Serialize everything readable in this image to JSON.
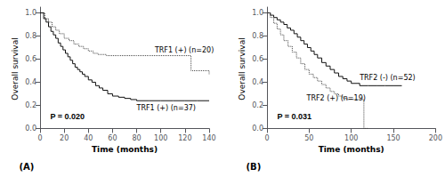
{
  "chart_data": [
    {
      "type": "step",
      "title": "(A)",
      "xlabel": "Time (months)",
      "ylabel": "Overall survival",
      "xlim": [
        0,
        140
      ],
      "ylim": [
        -0.02,
        1.05
      ],
      "xticks": [
        0,
        20,
        40,
        60,
        80,
        100,
        120,
        140
      ],
      "yticks": [
        {
          "value": 0.0,
          "label": "0.0"
        },
        0.2,
        0.4,
        0.6,
        0.8,
        {
          "value": 1.0,
          "label": "1.0"
        }
      ],
      "grid": false,
      "series": [
        {
          "color": "#444444",
          "line_style": "dotted",
          "x": [
            0,
            4,
            7,
            10,
            13,
            16,
            20,
            24,
            28,
            32,
            36,
            40,
            44,
            48,
            55,
            60,
            65,
            70,
            80,
            90,
            100,
            110,
            120,
            125,
            130,
            140
          ],
          "values": [
            1.0,
            0.95,
            0.92,
            0.88,
            0.85,
            0.82,
            0.78,
            0.76,
            0.73,
            0.71,
            0.69,
            0.67,
            0.65,
            0.64,
            0.63,
            0.63,
            0.63,
            0.63,
            0.63,
            0.63,
            0.63,
            0.63,
            0.63,
            0.5,
            0.5,
            0.47
          ]
        },
        {
          "color": "#111111",
          "line_style": "solid",
          "x": [
            0,
            3,
            5,
            7,
            9,
            11,
            13,
            15,
            17,
            19,
            21,
            23,
            25,
            27,
            29,
            31,
            33,
            35,
            37,
            40,
            43,
            46,
            49,
            52,
            56,
            60,
            65,
            70,
            75,
            80,
            90,
            100,
            110,
            120,
            130,
            140
          ],
          "values": [
            1.0,
            0.95,
            0.92,
            0.88,
            0.84,
            0.81,
            0.78,
            0.74,
            0.71,
            0.68,
            0.65,
            0.62,
            0.59,
            0.56,
            0.53,
            0.51,
            0.49,
            0.47,
            0.45,
            0.42,
            0.4,
            0.37,
            0.35,
            0.33,
            0.3,
            0.28,
            0.27,
            0.26,
            0.25,
            0.24,
            0.24,
            0.24,
            0.24,
            0.24,
            0.24,
            0.24
          ]
        }
      ],
      "annotations": [
        {
          "text": "TRF1 (+) (n=20)",
          "x": 95,
          "y": 0.68
        },
        {
          "text": "TRF1 (+) (n=37)",
          "x": 80,
          "y": 0.18
        },
        {
          "text": "P = 0.020"
        }
      ]
    },
    {
      "type": "step",
      "title": "(B)",
      "xlabel": "Time (months)",
      "ylabel": "Overall survival",
      "xlim": [
        0,
        200
      ],
      "ylim": [
        -0.02,
        1.05
      ],
      "xticks": [
        0,
        50,
        100,
        150,
        200
      ],
      "yticks": [
        {
          "value": 0.0,
          "label": "0.0"
        },
        0.2,
        0.4,
        0.6,
        0.8,
        {
          "value": 1.0,
          "label": "1.0"
        }
      ],
      "grid": false,
      "series": [
        {
          "color": "#111111",
          "line_style": "solid",
          "x": [
            0,
            4,
            8,
            12,
            16,
            20,
            24,
            28,
            32,
            36,
            40,
            44,
            48,
            52,
            56,
            60,
            65,
            70,
            75,
            80,
            85,
            90,
            95,
            100,
            110,
            120,
            130,
            140,
            150,
            160
          ],
          "values": [
            1.0,
            0.98,
            0.96,
            0.94,
            0.92,
            0.9,
            0.87,
            0.85,
            0.82,
            0.79,
            0.76,
            0.73,
            0.7,
            0.67,
            0.64,
            0.61,
            0.57,
            0.54,
            0.51,
            0.48,
            0.45,
            0.43,
            0.41,
            0.39,
            0.37,
            0.37,
            0.37,
            0.37,
            0.37,
            0.37
          ]
        },
        {
          "color": "#444444",
          "line_style": "dotted",
          "x": [
            0,
            4,
            8,
            12,
            16,
            20,
            25,
            30,
            35,
            40,
            45,
            50,
            55,
            60,
            65,
            70,
            75,
            80,
            85,
            90,
            95,
            100,
            110,
            115,
            120
          ],
          "values": [
            1.0,
            0.96,
            0.91,
            0.86,
            0.81,
            0.76,
            0.71,
            0.66,
            0.61,
            0.56,
            0.51,
            0.47,
            0.44,
            0.41,
            0.38,
            0.35,
            0.32,
            0.3,
            0.28,
            0.26,
            0.25,
            0.25,
            0.25,
            0.0,
            0.0
          ]
        }
      ],
      "annotations": [
        {
          "text": "TRF2 (-) (n=52)",
          "x": 110,
          "y": 0.44
        },
        {
          "text": "TRF2 (+) (n=19)",
          "x": 47,
          "y": 0.26
        },
        {
          "text": "P = 0.031"
        }
      ]
    }
  ]
}
